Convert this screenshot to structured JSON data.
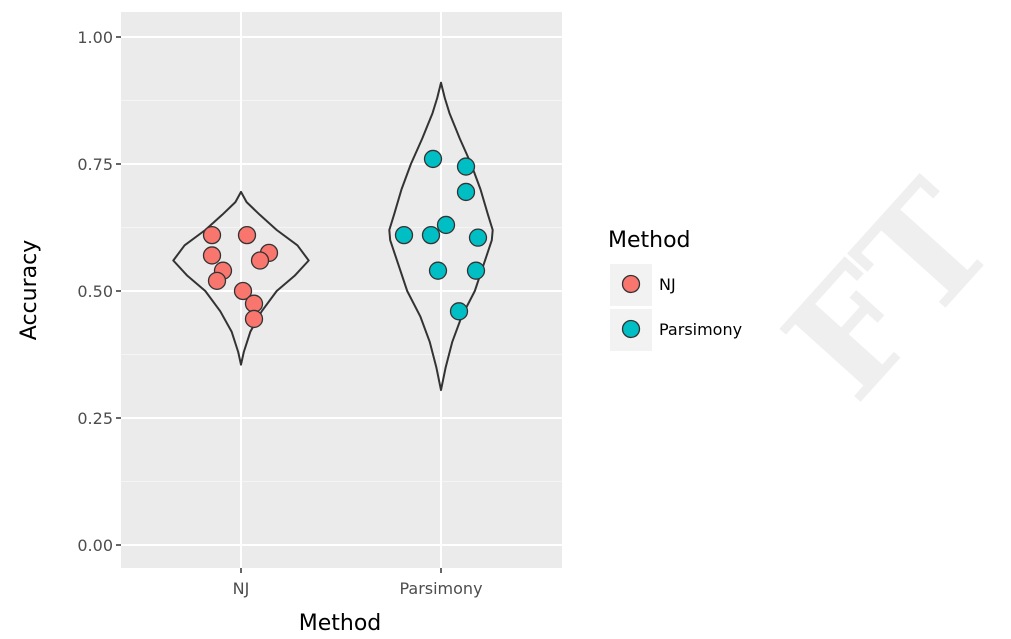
{
  "chart_data": {
    "type": "scatter",
    "overlay": "violin",
    "categories": [
      "NJ",
      "Parsimony"
    ],
    "xlabel": "Method",
    "ylabel": "Accuracy",
    "ylim": [
      -0.04,
      1.03
    ],
    "yticks": [
      0.0,
      0.25,
      0.5,
      0.75,
      1.0
    ],
    "ytick_labels": [
      "0.00",
      "0.25",
      "0.50",
      "0.75",
      "1.00"
    ],
    "grid": true,
    "legend": {
      "title": "Method",
      "placement": "right"
    },
    "series": [
      {
        "name": "NJ",
        "color": "#F8766D",
        "points": [
          {
            "x": "NJ",
            "y": 0.61
          },
          {
            "x": "NJ",
            "y": 0.57
          },
          {
            "x": "NJ",
            "y": 0.54
          },
          {
            "x": "NJ",
            "y": 0.52
          },
          {
            "x": "NJ",
            "y": 0.61
          },
          {
            "x": "NJ",
            "y": 0.575
          },
          {
            "x": "NJ",
            "y": 0.56
          },
          {
            "x": "NJ",
            "y": 0.5
          },
          {
            "x": "NJ",
            "y": 0.475
          },
          {
            "x": "NJ",
            "y": 0.445
          }
        ]
      },
      {
        "name": "Parsimony",
        "color": "#00BFC4",
        "points": [
          {
            "x": "Parsimony",
            "y": 0.76
          },
          {
            "x": "Parsimony",
            "y": 0.745
          },
          {
            "x": "Parsimony",
            "y": 0.695
          },
          {
            "x": "Parsimony",
            "y": 0.61
          },
          {
            "x": "Parsimony",
            "y": 0.61
          },
          {
            "x": "Parsimony",
            "y": 0.63
          },
          {
            "x": "Parsimony",
            "y": 0.605
          },
          {
            "x": "Parsimony",
            "y": 0.54
          },
          {
            "x": "Parsimony",
            "y": 0.54
          },
          {
            "x": "Parsimony",
            "y": 0.46
          }
        ]
      }
    ],
    "violins": [
      {
        "category": "NJ",
        "range": [
          0.355,
          0.695
        ],
        "profile": [
          [
            0.355,
            0.0
          ],
          [
            0.38,
            0.03
          ],
          [
            0.42,
            0.1
          ],
          [
            0.46,
            0.22
          ],
          [
            0.5,
            0.38
          ],
          [
            0.53,
            0.57
          ],
          [
            0.56,
            0.72
          ],
          [
            0.59,
            0.6
          ],
          [
            0.62,
            0.38
          ],
          [
            0.65,
            0.2
          ],
          [
            0.675,
            0.06
          ],
          [
            0.695,
            0.0
          ]
        ]
      },
      {
        "category": "Parsimony",
        "range": [
          0.305,
          0.91
        ],
        "profile": [
          [
            0.305,
            0.0
          ],
          [
            0.35,
            0.05
          ],
          [
            0.4,
            0.12
          ],
          [
            0.45,
            0.22
          ],
          [
            0.5,
            0.36
          ],
          [
            0.55,
            0.45
          ],
          [
            0.6,
            0.54
          ],
          [
            0.62,
            0.55
          ],
          [
            0.65,
            0.5
          ],
          [
            0.7,
            0.42
          ],
          [
            0.75,
            0.32
          ],
          [
            0.8,
            0.2
          ],
          [
            0.85,
            0.09
          ],
          [
            0.88,
            0.04
          ],
          [
            0.91,
            0.0
          ]
        ]
      }
    ],
    "watermark": "DRAFT"
  }
}
